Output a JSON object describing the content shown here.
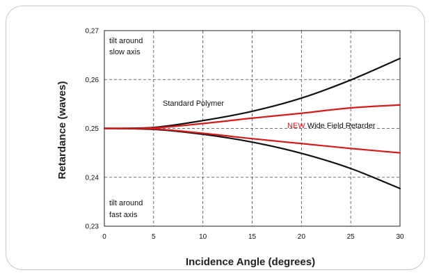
{
  "chart_data": {
    "type": "line",
    "xlabel": "Incidence Angle (degrees)",
    "ylabel": "Retardance (waves)",
    "xlim": [
      0,
      30
    ],
    "ylim": [
      0.23,
      0.27
    ],
    "x_ticks": [
      "0",
      "5",
      "10",
      "15",
      "20",
      "25",
      "30"
    ],
    "y_ticks": [
      "0,23",
      "0,24",
      "0,25",
      "0,26",
      "0,27"
    ],
    "grid": true,
    "series": [
      {
        "name": "Standard Polymer",
        "color": "#111111",
        "x": [
          0,
          5,
          10,
          15,
          20,
          25,
          30
        ],
        "y": [
          0.25,
          0.2502,
          0.2516,
          0.2535,
          0.2562,
          0.2599,
          0.2643
        ]
      },
      {
        "name": "Standard Polymer",
        "color": "#111111",
        "x": [
          0,
          5,
          10,
          15,
          20,
          25,
          30
        ],
        "y": [
          0.25,
          0.2498,
          0.2488,
          0.2472,
          0.2449,
          0.2418,
          0.2377
        ]
      },
      {
        "name": "NEW Wide Field Retarder",
        "color": "#d61a1a",
        "x": [
          0,
          5,
          10,
          15,
          20,
          25,
          30
        ],
        "y": [
          0.25,
          0.2501,
          0.251,
          0.2521,
          0.2531,
          0.2542,
          0.2548
        ]
      },
      {
        "name": "NEW Wide Field Retarder",
        "color": "#d61a1a",
        "x": [
          0,
          5,
          10,
          15,
          20,
          25,
          30
        ],
        "y": [
          0.25,
          0.2499,
          0.249,
          0.2479,
          0.2469,
          0.2459,
          0.245
        ]
      }
    ],
    "annotations": {
      "tilt_slow_line1": "tilt around",
      "tilt_slow_line2": "slow axis",
      "tilt_fast_line1": "tilt around",
      "tilt_fast_line2": "fast axis",
      "standard_polymer": "Standard Polymer",
      "new_word": "NEW",
      "wide_field": " Wide Field Retarder"
    }
  }
}
